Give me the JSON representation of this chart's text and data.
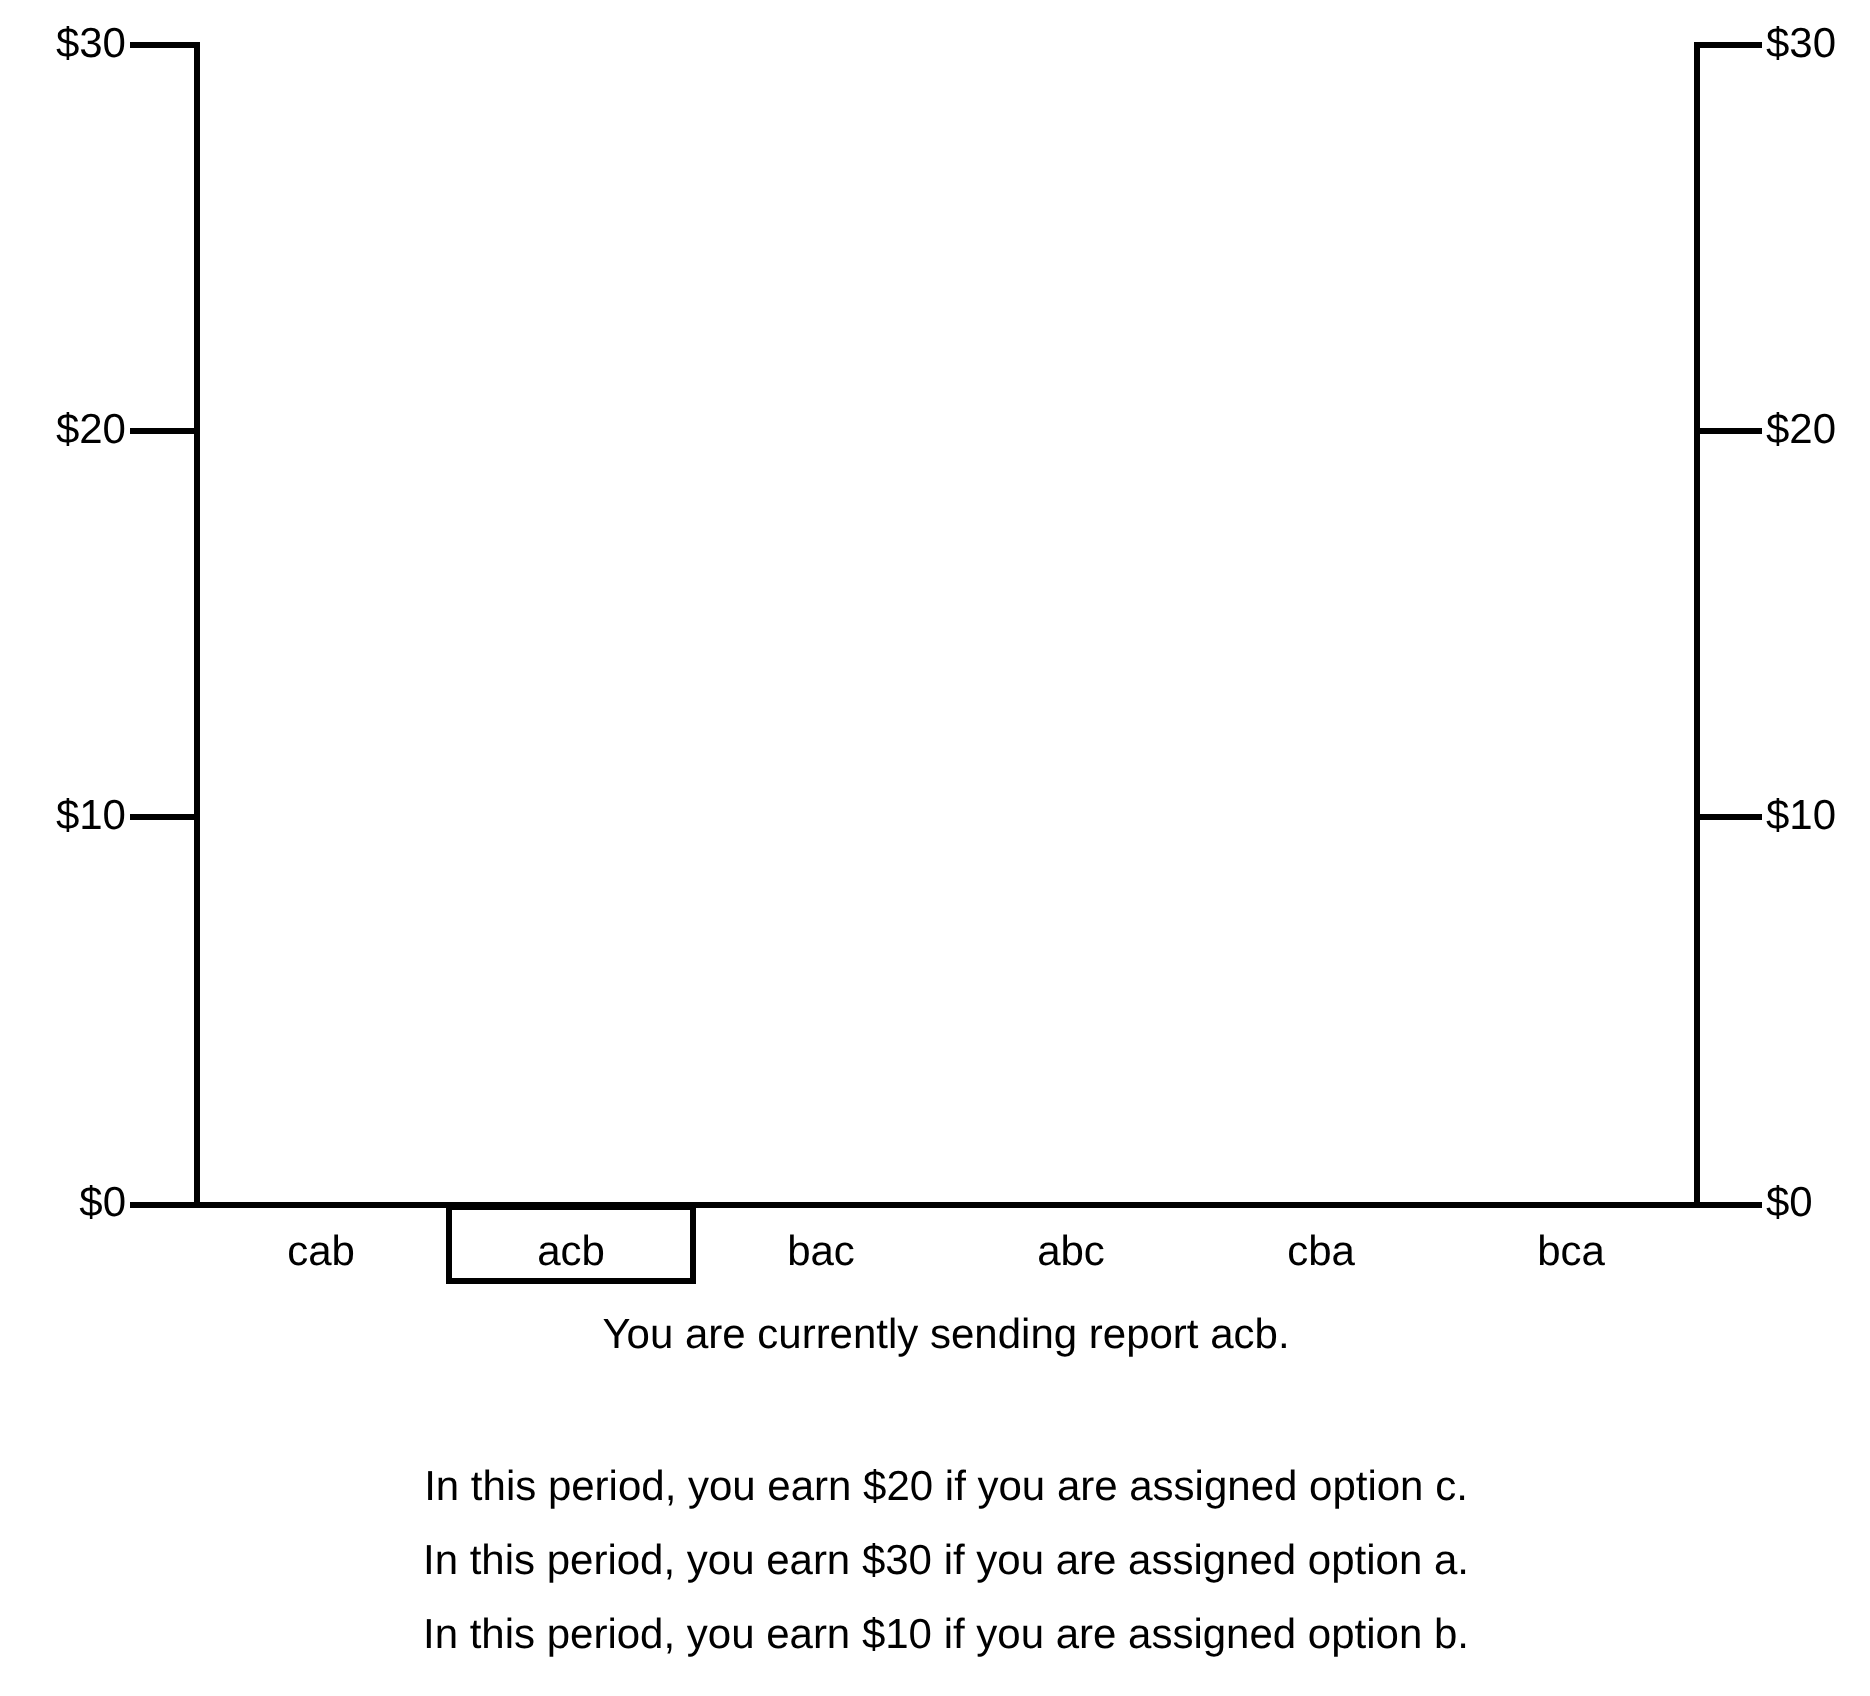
{
  "chart_data": {
    "type": "bar",
    "categories": [
      "cab",
      "acb",
      "bac",
      "abc",
      "cba",
      "bca"
    ],
    "values": [
      0,
      0,
      0,
      0,
      0,
      0
    ],
    "ylim": [
      0,
      30
    ],
    "yticks": [
      {
        "value": 0,
        "label": "$0"
      },
      {
        "value": 10,
        "label": "$10"
      },
      {
        "value": 20,
        "label": "$20"
      },
      {
        "value": 30,
        "label": "$30"
      }
    ],
    "y2lim": [
      0,
      30
    ],
    "y2ticks": [
      {
        "value": 0,
        "label": "$0"
      },
      {
        "value": 10,
        "label": "$10"
      },
      {
        "value": 20,
        "label": "$20"
      },
      {
        "value": 30,
        "label": "$30"
      }
    ],
    "grid": false,
    "legend": false,
    "annotations": [
      "You are currently sending report acb.",
      "In this period, you earn $20 if you are assigned option c.",
      "In this period, you earn $30 if you are assigned option a.",
      "In this period, you earn $10 if you are assigned option b."
    ]
  }
}
